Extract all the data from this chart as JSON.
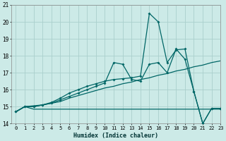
{
  "title": "",
  "xlabel": "Humidex (Indice chaleur)",
  "bg_color": "#cceae7",
  "grid_color": "#aacfcc",
  "line_color": "#006666",
  "xlim": [
    -0.5,
    23
  ],
  "ylim": [
    14,
    21
  ],
  "yticks": [
    14,
    15,
    16,
    17,
    18,
    19,
    20,
    21
  ],
  "xticks": [
    0,
    1,
    2,
    3,
    4,
    5,
    6,
    7,
    8,
    9,
    10,
    11,
    12,
    13,
    14,
    15,
    16,
    17,
    18,
    19,
    20,
    21,
    22,
    23
  ],
  "series1_x": [
    0,
    1,
    2,
    3,
    4,
    5,
    6,
    7,
    8,
    9,
    10,
    11,
    12,
    13,
    14,
    15,
    16,
    17,
    18,
    19,
    20,
    21,
    22,
    23
  ],
  "series1_y": [
    14.7,
    15.0,
    14.85,
    14.85,
    14.85,
    14.85,
    14.85,
    14.85,
    14.85,
    14.85,
    14.85,
    14.85,
    14.85,
    14.85,
    14.85,
    14.85,
    14.85,
    14.85,
    14.85,
    14.85,
    14.85,
    14.85,
    14.85,
    14.85
  ],
  "series2_x": [
    0,
    1,
    2,
    3,
    4,
    5,
    6,
    7,
    8,
    9,
    10,
    11,
    12,
    13,
    14,
    15,
    16,
    17,
    18,
    19,
    20,
    21,
    22,
    23
  ],
  "series2_y": [
    14.7,
    15.0,
    15.05,
    15.1,
    15.2,
    15.3,
    15.5,
    15.65,
    15.8,
    15.95,
    16.1,
    16.2,
    16.35,
    16.45,
    16.6,
    16.7,
    16.85,
    16.95,
    17.1,
    17.2,
    17.35,
    17.45,
    17.6,
    17.7
  ],
  "series3_x": [
    0,
    1,
    2,
    3,
    4,
    5,
    6,
    7,
    8,
    9,
    10,
    11,
    12,
    13,
    14,
    15,
    16,
    17,
    18,
    19,
    20,
    21,
    22,
    23
  ],
  "series3_y": [
    14.7,
    15.0,
    15.0,
    15.1,
    15.2,
    15.4,
    15.6,
    15.8,
    16.0,
    16.2,
    16.4,
    17.6,
    17.5,
    16.6,
    16.5,
    17.5,
    17.6,
    17.0,
    18.4,
    17.8,
    15.9,
    14.0,
    14.9,
    14.9
  ],
  "series4_x": [
    0,
    1,
    2,
    3,
    4,
    5,
    6,
    7,
    8,
    9,
    10,
    11,
    12,
    13,
    14,
    15,
    16,
    17,
    18,
    19,
    20,
    21,
    22,
    23
  ],
  "series4_y": [
    14.7,
    15.0,
    15.0,
    15.1,
    15.25,
    15.5,
    15.8,
    16.0,
    16.2,
    16.35,
    16.5,
    16.6,
    16.65,
    16.7,
    16.8,
    20.5,
    20.0,
    17.6,
    18.35,
    18.4,
    15.9,
    14.0,
    14.9,
    14.9
  ]
}
